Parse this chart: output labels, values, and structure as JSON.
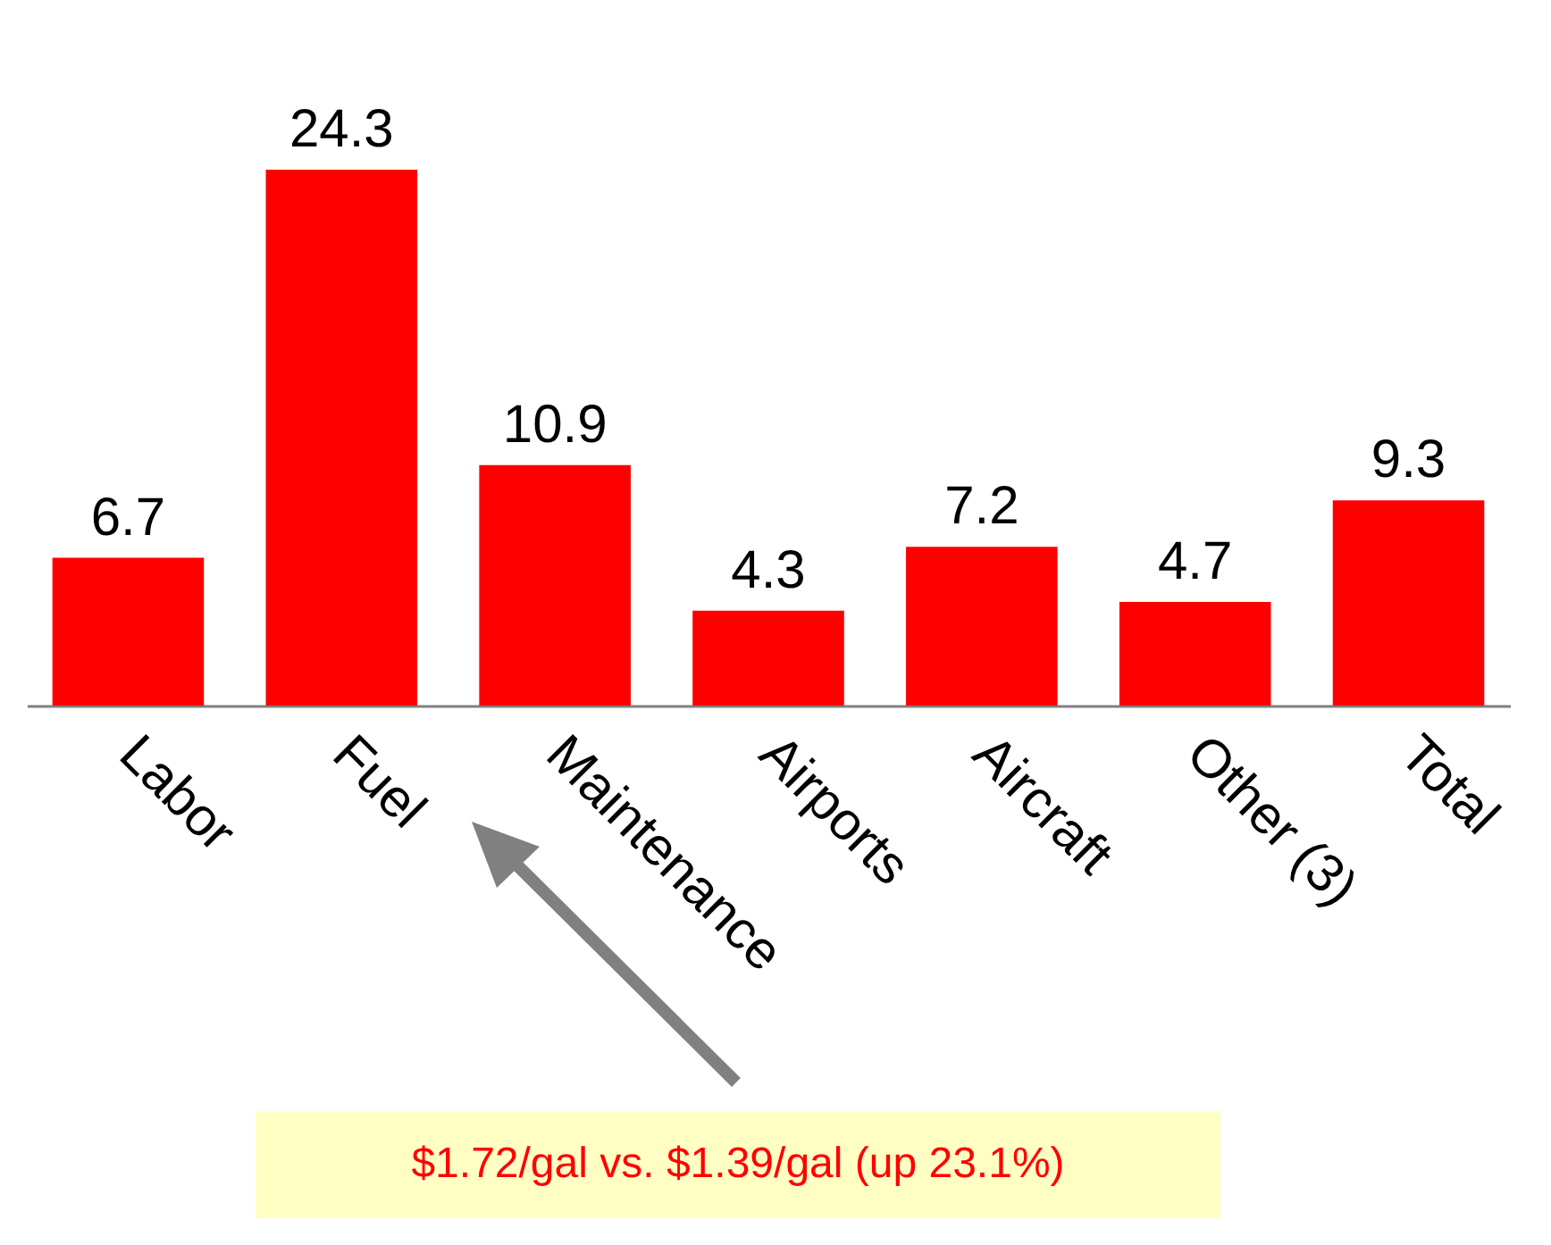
{
  "chart_data": {
    "type": "bar",
    "categories": [
      "Labor",
      "Fuel",
      "Maintenance",
      "Airports",
      "Aircraft",
      "Other (3)",
      "Total"
    ],
    "values": [
      6.7,
      24.3,
      10.9,
      4.3,
      7.2,
      4.7,
      9.3
    ],
    "color": "#ff0000",
    "data_labels": true,
    "annotations": [
      "$1.72/gal vs. $1.39/gal (up 23.1%)"
    ]
  }
}
